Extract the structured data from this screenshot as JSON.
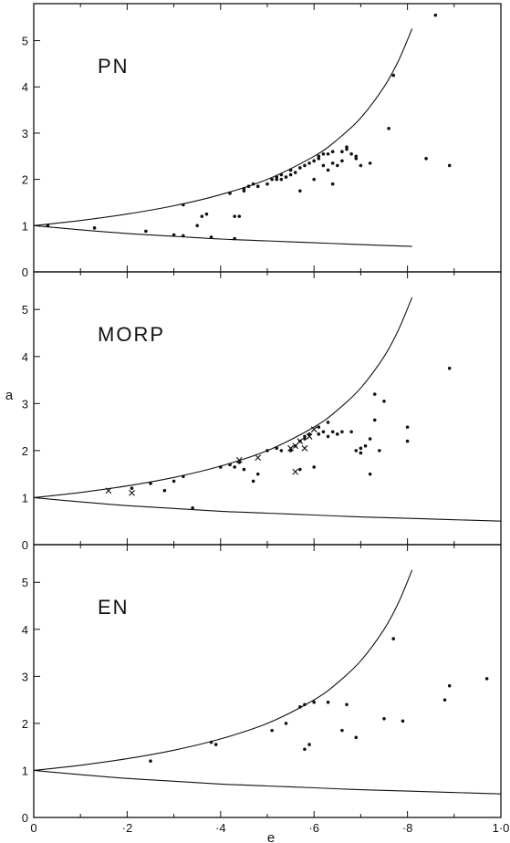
{
  "chart_data": {
    "type": "scatter",
    "xlabel": "e",
    "ylabel": "a",
    "xlim": [
      0,
      1.0
    ],
    "ylim": [
      0,
      5.8
    ],
    "x_ticks": [
      {
        "value": 0,
        "label": "0"
      },
      {
        "value": 0.2,
        "label": "·2"
      },
      {
        "value": 0.4,
        "label": "·4"
      },
      {
        "value": 0.6,
        "label": "·6"
      },
      {
        "value": 0.8,
        "label": "·8"
      },
      {
        "value": 1.0,
        "label": "1·0"
      }
    ],
    "y_ticks": [
      {
        "value": 0,
        "label": "0"
      },
      {
        "value": 1,
        "label": "1"
      },
      {
        "value": 2,
        "label": "2"
      },
      {
        "value": 3,
        "label": "3"
      },
      {
        "value": 4,
        "label": "4"
      },
      {
        "value": 5,
        "label": "5"
      }
    ],
    "grid": false,
    "panels": [
      {
        "label": "PN",
        "upper_curve": [
          [
            0,
            1.0
          ],
          [
            0.1,
            1.11
          ],
          [
            0.2,
            1.25
          ],
          [
            0.3,
            1.43
          ],
          [
            0.4,
            1.67
          ],
          [
            0.5,
            2.0
          ],
          [
            0.6,
            2.5
          ],
          [
            0.65,
            2.86
          ],
          [
            0.7,
            3.33
          ],
          [
            0.75,
            4.0
          ],
          [
            0.78,
            4.55
          ],
          [
            0.81,
            5.26
          ]
        ],
        "lower_curve": [
          [
            0,
            1.0
          ],
          [
            0.1,
            0.91
          ],
          [
            0.2,
            0.83
          ],
          [
            0.3,
            0.77
          ],
          [
            0.4,
            0.71
          ],
          [
            0.5,
            0.67
          ],
          [
            0.6,
            0.63
          ],
          [
            0.7,
            0.59
          ],
          [
            0.81,
            0.55
          ]
        ],
        "series": [
          {
            "marker": "dot",
            "points": [
              [
                0.03,
                1.0
              ],
              [
                0.13,
                0.95
              ],
              [
                0.24,
                0.88
              ],
              [
                0.3,
                0.8
              ],
              [
                0.32,
                0.78
              ],
              [
                0.32,
                1.45
              ],
              [
                0.35,
                1.0
              ],
              [
                0.36,
                1.2
              ],
              [
                0.37,
                1.25
              ],
              [
                0.38,
                0.75
              ],
              [
                0.42,
                1.7
              ],
              [
                0.43,
                1.2
              ],
              [
                0.44,
                1.2
              ],
              [
                0.43,
                0.72
              ],
              [
                0.45,
                1.75
              ],
              [
                0.45,
                1.8
              ],
              [
                0.46,
                1.85
              ],
              [
                0.47,
                1.9
              ],
              [
                0.48,
                1.85
              ],
              [
                0.5,
                1.9
              ],
              [
                0.51,
                2.0
              ],
              [
                0.52,
                2.05
              ],
              [
                0.52,
                2.0
              ],
              [
                0.53,
                2.1
              ],
              [
                0.53,
                2.0
              ],
              [
                0.54,
                2.05
              ],
              [
                0.55,
                2.1
              ],
              [
                0.55,
                2.2
              ],
              [
                0.56,
                2.15
              ],
              [
                0.57,
                2.25
              ],
              [
                0.57,
                1.75
              ],
              [
                0.58,
                2.3
              ],
              [
                0.59,
                2.35
              ],
              [
                0.6,
                2.4
              ],
              [
                0.6,
                2.0
              ],
              [
                0.61,
                2.45
              ],
              [
                0.61,
                2.5
              ],
              [
                0.62,
                2.3
              ],
              [
                0.62,
                2.55
              ],
              [
                0.63,
                2.55
              ],
              [
                0.63,
                2.2
              ],
              [
                0.64,
                2.6
              ],
              [
                0.64,
                2.35
              ],
              [
                0.64,
                1.9
              ],
              [
                0.65,
                2.3
              ],
              [
                0.66,
                2.4
              ],
              [
                0.66,
                2.6
              ],
              [
                0.67,
                2.7
              ],
              [
                0.67,
                2.65
              ],
              [
                0.68,
                2.55
              ],
              [
                0.69,
                2.45
              ],
              [
                0.69,
                2.5
              ],
              [
                0.7,
                2.3
              ],
              [
                0.72,
                2.35
              ],
              [
                0.76,
                3.1
              ],
              [
                0.77,
                4.25
              ],
              [
                0.84,
                2.45
              ],
              [
                0.86,
                5.55
              ],
              [
                0.89,
                2.3
              ]
            ]
          }
        ]
      },
      {
        "label": "MORP",
        "upper_curve": [
          [
            0,
            1.0
          ],
          [
            0.1,
            1.11
          ],
          [
            0.2,
            1.25
          ],
          [
            0.3,
            1.43
          ],
          [
            0.4,
            1.67
          ],
          [
            0.5,
            2.0
          ],
          [
            0.6,
            2.5
          ],
          [
            0.65,
            2.86
          ],
          [
            0.7,
            3.33
          ],
          [
            0.75,
            4.0
          ],
          [
            0.78,
            4.55
          ],
          [
            0.81,
            5.26
          ]
        ],
        "lower_curve": [
          [
            0,
            1.0
          ],
          [
            0.1,
            0.91
          ],
          [
            0.2,
            0.83
          ],
          [
            0.3,
            0.77
          ],
          [
            0.4,
            0.71
          ],
          [
            0.5,
            0.67
          ],
          [
            0.6,
            0.63
          ],
          [
            0.7,
            0.59
          ],
          [
            0.8,
            0.56
          ],
          [
            1.0,
            0.5
          ]
        ],
        "series": [
          {
            "marker": "dot",
            "points": [
              [
                0.21,
                1.2
              ],
              [
                0.25,
                1.3
              ],
              [
                0.28,
                1.15
              ],
              [
                0.3,
                1.35
              ],
              [
                0.32,
                1.45
              ],
              [
                0.34,
                0.78
              ],
              [
                0.4,
                1.65
              ],
              [
                0.42,
                1.7
              ],
              [
                0.43,
                1.65
              ],
              [
                0.44,
                1.75
              ],
              [
                0.45,
                1.6
              ],
              [
                0.47,
                1.35
              ],
              [
                0.48,
                1.5
              ],
              [
                0.5,
                2.0
              ],
              [
                0.52,
                2.05
              ],
              [
                0.53,
                2.0
              ],
              [
                0.55,
                2.0
              ],
              [
                0.56,
                2.1
              ],
              [
                0.57,
                2.2
              ],
              [
                0.57,
                1.6
              ],
              [
                0.58,
                2.25
              ],
              [
                0.58,
                2.3
              ],
              [
                0.59,
                2.35
              ],
              [
                0.6,
                1.65
              ],
              [
                0.61,
                2.35
              ],
              [
                0.61,
                2.5
              ],
              [
                0.62,
                2.4
              ],
              [
                0.63,
                2.6
              ],
              [
                0.63,
                2.3
              ],
              [
                0.64,
                2.4
              ],
              [
                0.65,
                2.35
              ],
              [
                0.66,
                2.4
              ],
              [
                0.68,
                2.4
              ],
              [
                0.69,
                2.0
              ],
              [
                0.7,
                1.95
              ],
              [
                0.7,
                2.05
              ],
              [
                0.71,
                2.1
              ],
              [
                0.72,
                1.5
              ],
              [
                0.72,
                2.25
              ],
              [
                0.73,
                2.65
              ],
              [
                0.73,
                3.2
              ],
              [
                0.74,
                2.0
              ],
              [
                0.75,
                3.05
              ],
              [
                0.8,
                2.2
              ],
              [
                0.8,
                2.5
              ],
              [
                0.89,
                3.75
              ]
            ]
          },
          {
            "marker": "cross",
            "points": [
              [
                0.16,
                1.15
              ],
              [
                0.21,
                1.1
              ],
              [
                0.44,
                1.8
              ],
              [
                0.48,
                1.85
              ],
              [
                0.55,
                2.05
              ],
              [
                0.56,
                2.1
              ],
              [
                0.56,
                1.55
              ],
              [
                0.57,
                2.2
              ],
              [
                0.58,
                2.05
              ],
              [
                0.59,
                2.3
              ],
              [
                0.6,
                2.45
              ]
            ]
          }
        ]
      },
      {
        "label": "EN",
        "upper_curve": [
          [
            0,
            1.0
          ],
          [
            0.1,
            1.11
          ],
          [
            0.2,
            1.25
          ],
          [
            0.3,
            1.43
          ],
          [
            0.4,
            1.67
          ],
          [
            0.5,
            2.0
          ],
          [
            0.6,
            2.5
          ],
          [
            0.65,
            2.86
          ],
          [
            0.7,
            3.33
          ],
          [
            0.75,
            4.0
          ],
          [
            0.78,
            4.55
          ],
          [
            0.81,
            5.26
          ]
        ],
        "lower_curve": [
          [
            0,
            1.0
          ],
          [
            0.1,
            0.91
          ],
          [
            0.2,
            0.83
          ],
          [
            0.3,
            0.77
          ],
          [
            0.4,
            0.71
          ],
          [
            0.5,
            0.67
          ],
          [
            0.6,
            0.63
          ],
          [
            0.7,
            0.59
          ],
          [
            0.8,
            0.56
          ],
          [
            1.0,
            0.5
          ]
        ],
        "series": [
          {
            "marker": "dot",
            "points": [
              [
                0.25,
                1.2
              ],
              [
                0.38,
                1.6
              ],
              [
                0.39,
                1.55
              ],
              [
                0.51,
                1.85
              ],
              [
                0.54,
                2.0
              ],
              [
                0.57,
                2.35
              ],
              [
                0.58,
                1.45
              ],
              [
                0.58,
                2.4
              ],
              [
                0.59,
                1.55
              ],
              [
                0.6,
                2.45
              ],
              [
                0.63,
                2.45
              ],
              [
                0.66,
                1.85
              ],
              [
                0.67,
                2.4
              ],
              [
                0.69,
                1.7
              ],
              [
                0.75,
                2.1
              ],
              [
                0.77,
                3.8
              ],
              [
                0.79,
                2.05
              ],
              [
                0.88,
                2.5
              ],
              [
                0.89,
                2.8
              ],
              [
                0.97,
                2.95
              ]
            ]
          }
        ]
      }
    ]
  }
}
